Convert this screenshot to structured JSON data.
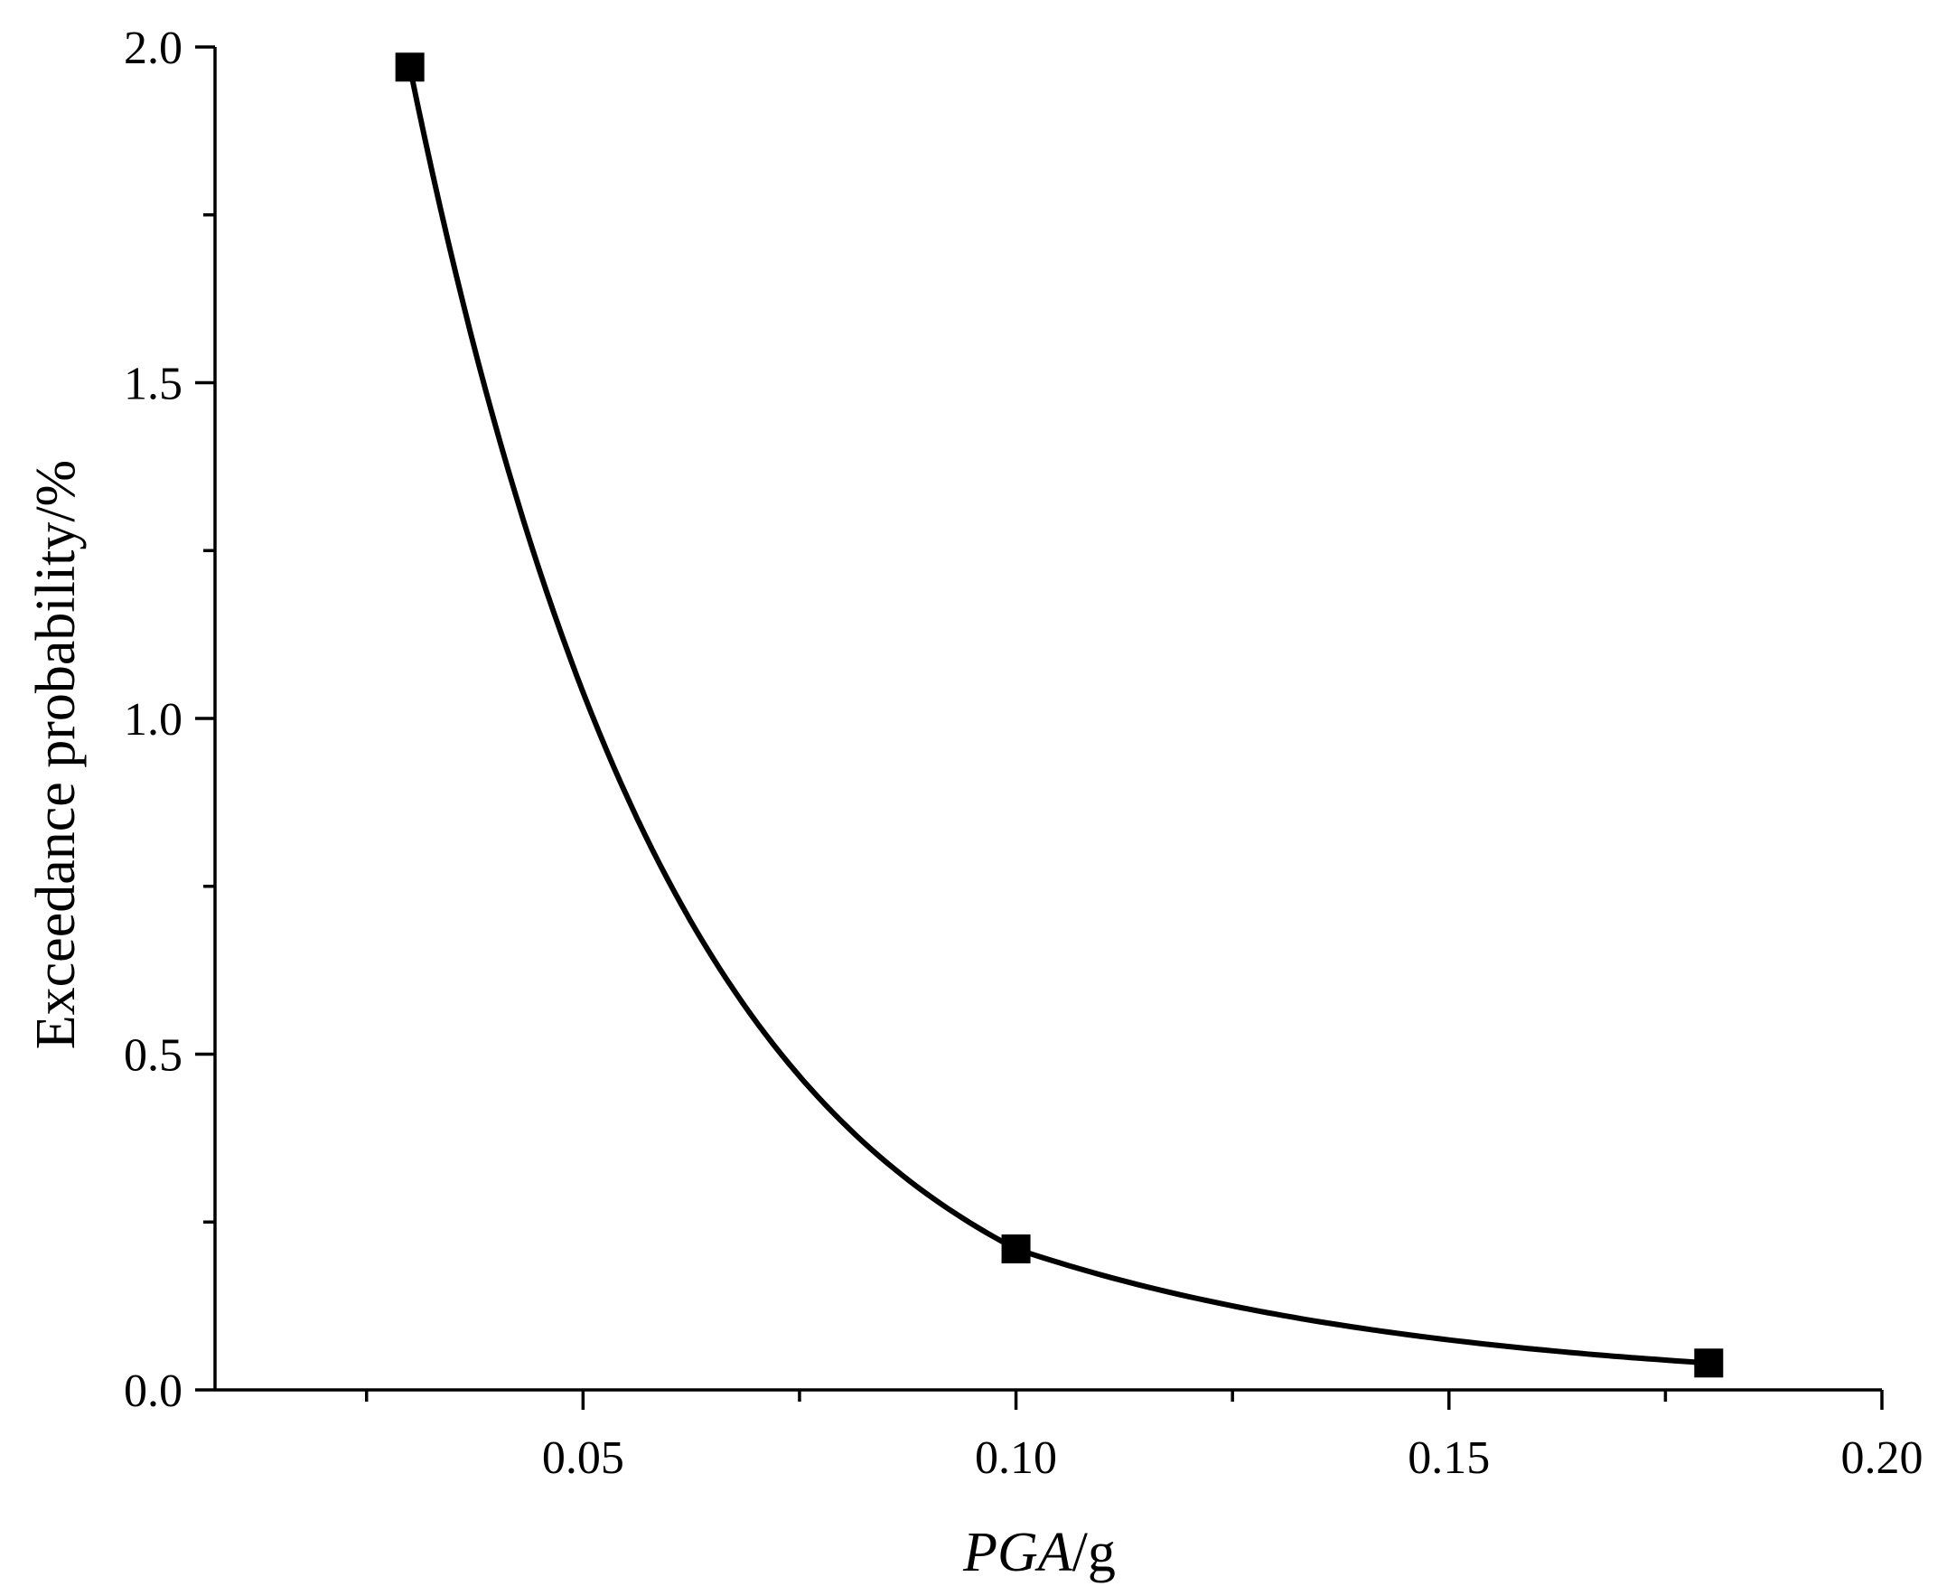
{
  "chart_data": {
    "type": "line",
    "title": "",
    "xlabel_parts": [
      "PGA",
      "/g"
    ],
    "ylabel": "Exceedance probability/%",
    "xlim": [
      0.0075,
      0.2
    ],
    "ylim": [
      0,
      2.0
    ],
    "x_ticks": [
      0.05,
      0.1,
      0.15,
      0.2
    ],
    "x_tick_labels": [
      "0.05",
      "0.10",
      "0.15",
      "0.20"
    ],
    "x_minor_ticks": [
      0.025,
      0.075,
      0.125,
      0.175
    ],
    "y_ticks": [
      0.0,
      0.5,
      1.0,
      1.5,
      2.0
    ],
    "y_tick_labels": [
      "0.0",
      "0.5",
      "1.0",
      "1.5",
      "2.0"
    ],
    "y_minor_ticks": [
      0.25,
      0.75,
      1.25,
      1.75
    ],
    "grid": false,
    "legend": "none",
    "series": [
      {
        "marker": "square",
        "color": "#000000",
        "x": [
          0.03,
          0.1,
          0.18
        ],
        "y": [
          1.97,
          0.21,
          0.04
        ]
      }
    ]
  }
}
